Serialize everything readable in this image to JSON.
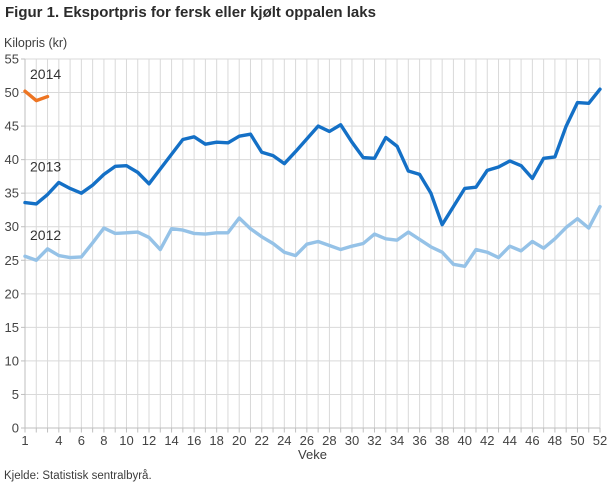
{
  "title": "Figur 1. Eksportpris for fersk eller kjølt oppalen laks",
  "source": "Kjelde: Statistisk sentralbyrå.",
  "chart_data": {
    "type": "line",
    "title": "Figur 1. Eksportpris for fersk eller kjølt oppalen laks",
    "xlabel": "Veke",
    "ylabel": "Kilopris (kr)",
    "ylim": [
      0,
      55
    ],
    "y_tick_step": 5,
    "x_range": [
      1,
      52
    ],
    "x_tick_labels": [
      1,
      4,
      6,
      8,
      10,
      12,
      14,
      16,
      18,
      20,
      22,
      24,
      26,
      28,
      30,
      32,
      34,
      36,
      38,
      40,
      42,
      44,
      46,
      48,
      50,
      52
    ],
    "grid": true,
    "legend_position": "inline-labels-at-line-start",
    "series": [
      {
        "name": "2012",
        "color": "#95C2E7",
        "start_week": 1,
        "values": [
          25.6,
          25.0,
          26.7,
          25.7,
          25.4,
          25.5,
          27.6,
          29.8,
          29.0,
          29.1,
          29.2,
          28.4,
          26.6,
          29.7,
          29.5,
          29.0,
          28.9,
          29.1,
          29.1,
          31.3,
          29.7,
          28.5,
          27.5,
          26.2,
          25.7,
          27.4,
          27.8,
          27.2,
          26.6,
          27.1,
          27.5,
          28.9,
          28.2,
          28.0,
          29.2,
          28.1,
          27.0,
          26.2,
          24.4,
          24.1,
          26.6,
          26.2,
          25.4,
          27.1,
          26.4,
          27.8,
          26.8,
          28.2,
          29.9,
          31.2,
          29.8,
          33.0
        ]
      },
      {
        "name": "2013",
        "color": "#1470C6",
        "start_week": 1,
        "values": [
          33.6,
          33.4,
          34.8,
          36.6,
          35.7,
          35.0,
          36.2,
          37.8,
          39.0,
          39.1,
          38.1,
          36.4,
          38.6,
          40.8,
          43.0,
          43.4,
          42.3,
          42.6,
          42.5,
          43.5,
          43.8,
          41.1,
          40.6,
          39.4,
          41.2,
          43.1,
          45.0,
          44.2,
          45.2,
          42.6,
          40.3,
          40.2,
          43.3,
          42.0,
          38.3,
          37.8,
          35.0,
          30.3,
          33.0,
          35.7,
          35.9,
          38.4,
          38.9,
          39.8,
          39.1,
          37.2,
          40.2,
          40.4,
          45.0,
          48.5,
          48.4,
          50.5
        ]
      },
      {
        "name": "2014",
        "color": "#ED7523",
        "start_week": 1,
        "values": [
          50.2,
          48.8,
          49.4
        ]
      }
    ]
  },
  "colors": {
    "grid": "#d9d9d9",
    "axis": "#bfbfbf",
    "tick_text": "#444444",
    "label_text": "#333333"
  }
}
